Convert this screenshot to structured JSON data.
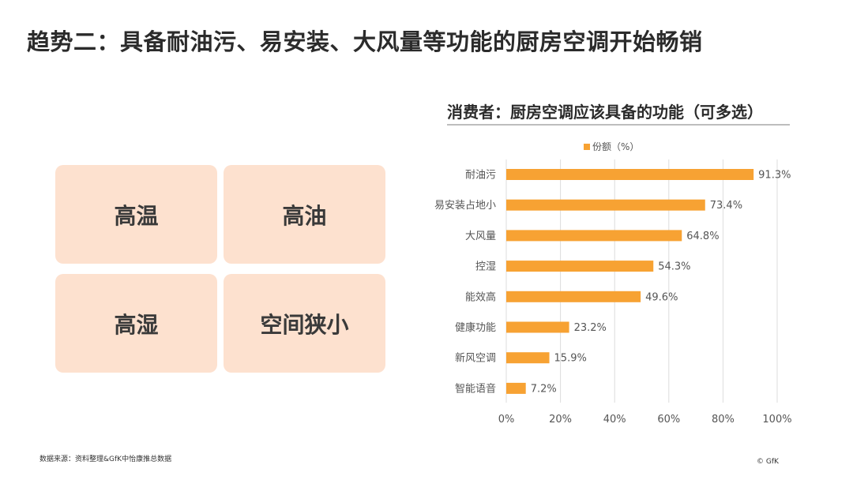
{
  "page_title": "趋势二：具备耐油污、易安装、大风量等功能的厨房空调开始畅销",
  "tiles": [
    {
      "label": "高温"
    },
    {
      "label": "高油"
    },
    {
      "label": "高湿"
    },
    {
      "label": "空间狭小"
    }
  ],
  "chart_title": "消费者：厨房空调应该具备的功能（可多选）",
  "chart_data": {
    "type": "bar",
    "orientation": "horizontal",
    "categories": [
      "耐油污",
      "易安装占地小",
      "大风量",
      "控湿",
      "能效高",
      "健康功能",
      "新风空调",
      "智能语音"
    ],
    "series": [
      {
        "name": "份额（%）",
        "values": [
          91.3,
          73.4,
          64.8,
          54.3,
          49.6,
          23.2,
          15.9,
          7.2
        ]
      }
    ],
    "data_labels": [
      "91.3%",
      "73.4%",
      "64.8%",
      "54.3%",
      "49.6%",
      "23.2%",
      "15.9%",
      "7.2%"
    ],
    "xlim": [
      0,
      100
    ],
    "x_ticks": [
      "0%",
      "20%",
      "40%",
      "60%",
      "80%",
      "100%"
    ],
    "grid": true,
    "legend": "top-center",
    "bar_color": "#f7a233"
  },
  "footer": {
    "source": "数据来源：资料整理&GfK中怡康推总数据",
    "copyright": "© GfK"
  }
}
